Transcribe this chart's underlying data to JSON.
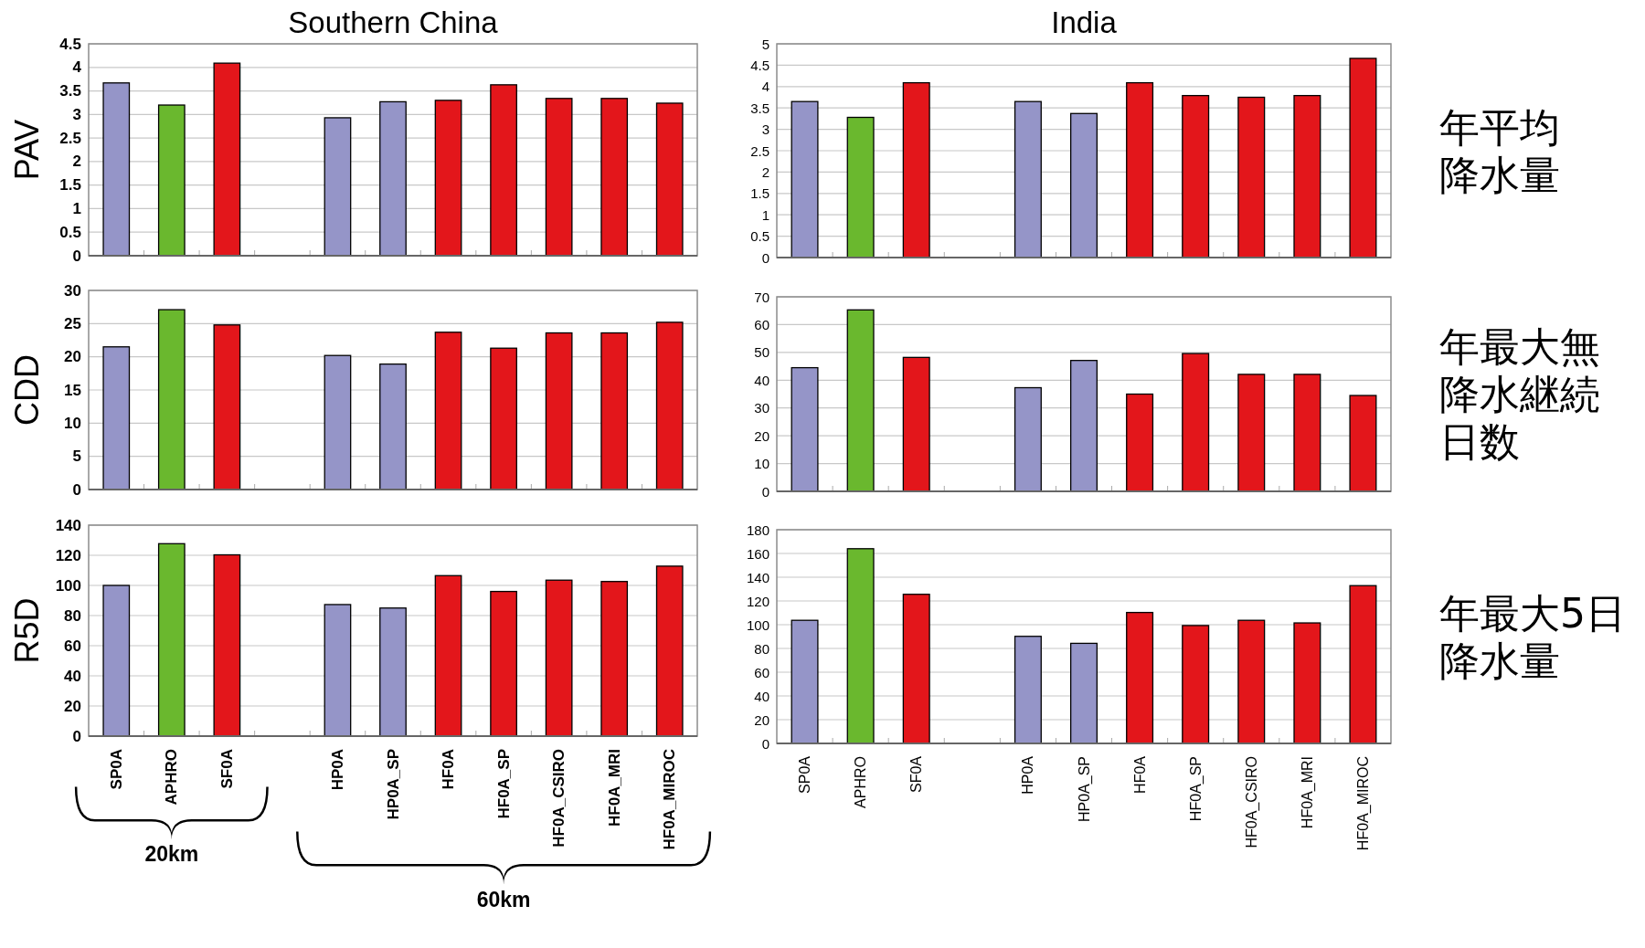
{
  "chart_data": [
    {
      "type": "bar",
      "title": "Southern China",
      "ylabel": "PAV",
      "categories": [
        null,
        null,
        null,
        null,
        null,
        null,
        null,
        null,
        null,
        null,
        null
      ],
      "values": [
        3.67,
        3.2,
        4.09,
        null,
        2.93,
        3.27,
        3.3,
        3.63,
        3.34,
        3.34,
        3.24
      ],
      "colors": [
        "#9595c8",
        "#6ab82e",
        "#e3161b",
        null,
        "#9595c8",
        "#9595c8",
        "#e3161b",
        "#e3161b",
        "#e3161b",
        "#e3161b",
        "#e3161b"
      ],
      "ylim": [
        0,
        4.5
      ],
      "yticks": [
        0,
        0.5,
        1,
        1.5,
        2,
        2.5,
        3,
        3.5,
        4,
        4.5
      ],
      "grid": "y"
    },
    {
      "type": "bar",
      "title": "India",
      "categories": [
        null,
        null,
        null,
        null,
        null,
        null,
        null,
        null,
        null,
        null,
        null
      ],
      "values": [
        3.65,
        3.28,
        4.09,
        null,
        3.65,
        3.37,
        4.09,
        3.79,
        3.75,
        3.79,
        4.66
      ],
      "colors": [
        "#9595c8",
        "#6ab82e",
        "#e3161b",
        null,
        "#9595c8",
        "#9595c8",
        "#e3161b",
        "#e3161b",
        "#e3161b",
        "#e3161b",
        "#e3161b"
      ],
      "ylim": [
        0,
        5
      ],
      "yticks": [
        0,
        0.5,
        1,
        1.5,
        2,
        2.5,
        3,
        3.5,
        4,
        4.5,
        5
      ],
      "grid": "y",
      "annotations": [
        "年平均",
        "降水量"
      ]
    },
    {
      "type": "bar",
      "ylabel": "CDD",
      "categories": [
        null,
        null,
        null,
        null,
        null,
        null,
        null,
        null,
        null,
        null,
        null
      ],
      "values": [
        21.5,
        27.1,
        24.8,
        null,
        20.2,
        18.9,
        23.7,
        21.3,
        23.6,
        23.6,
        25.2
      ],
      "colors": [
        "#9595c8",
        "#6ab82e",
        "#e3161b",
        null,
        "#9595c8",
        "#9595c8",
        "#e3161b",
        "#e3161b",
        "#e3161b",
        "#e3161b",
        "#e3161b"
      ],
      "ylim": [
        0,
        30
      ],
      "yticks": [
        0,
        5,
        10,
        15,
        20,
        25,
        30
      ],
      "grid": "y"
    },
    {
      "type": "bar",
      "categories": [
        null,
        null,
        null,
        null,
        null,
        null,
        null,
        null,
        null,
        null,
        null
      ],
      "values": [
        44.5,
        65.3,
        48.2,
        null,
        37.3,
        47.1,
        35,
        49.6,
        42.1,
        42.1,
        34.5
      ],
      "colors": [
        "#9595c8",
        "#6ab82e",
        "#e3161b",
        null,
        "#9595c8",
        "#9595c8",
        "#e3161b",
        "#e3161b",
        "#e3161b",
        "#e3161b",
        "#e3161b"
      ],
      "ylim": [
        0,
        70
      ],
      "yticks": [
        0,
        10,
        20,
        30,
        40,
        50,
        60,
        70
      ],
      "grid": "y",
      "annotations": [
        "年最大無",
        "降水継続",
        "日数"
      ]
    },
    {
      "type": "bar",
      "ylabel": "R5D",
      "categories": [
        "SP0A",
        "APHRO",
        "SF0A",
        null,
        "HP0A",
        "HP0A_SP",
        "HF0A",
        "HF0A_SP",
        "HF0A_CSIRO",
        "HF0A_MRI",
        "HF0A_MIROC"
      ],
      "values": [
        100,
        127.7,
        120.3,
        null,
        87.3,
        85,
        106.5,
        96,
        103.5,
        102.6,
        112.8
      ],
      "colors": [
        "#9595c8",
        "#6ab82e",
        "#e3161b",
        null,
        "#9595c8",
        "#9595c8",
        "#e3161b",
        "#e3161b",
        "#e3161b",
        "#e3161b",
        "#e3161b"
      ],
      "ylim": [
        0,
        140
      ],
      "yticks": [
        0,
        20,
        40,
        60,
        80,
        100,
        120,
        140
      ],
      "grid": "y",
      "annotations": [
        "20km",
        "60km"
      ]
    },
    {
      "type": "bar",
      "categories": [
        "SP0A",
        "APHRO",
        "SF0A",
        null,
        "HP0A",
        "HP0A_SP",
        "HF0A",
        "HF0A_SP",
        "HF0A_CSIRO",
        "HF0A_MRI",
        "HF0A_MIROC"
      ],
      "values": [
        103.7,
        164,
        125.6,
        null,
        90.2,
        84.3,
        110.3,
        99.3,
        103.7,
        101.5,
        132.9
      ],
      "colors": [
        "#9595c8",
        "#6ab82e",
        "#e3161b",
        null,
        "#9595c8",
        "#9595c8",
        "#e3161b",
        "#e3161b",
        "#e3161b",
        "#e3161b",
        "#e3161b"
      ],
      "ylim": [
        0,
        180
      ],
      "yticks": [
        0,
        20,
        40,
        60,
        80,
        100,
        120,
        140,
        160,
        180
      ],
      "grid": "y",
      "annotations": [
        "年最大5日",
        "降水量"
      ]
    }
  ]
}
